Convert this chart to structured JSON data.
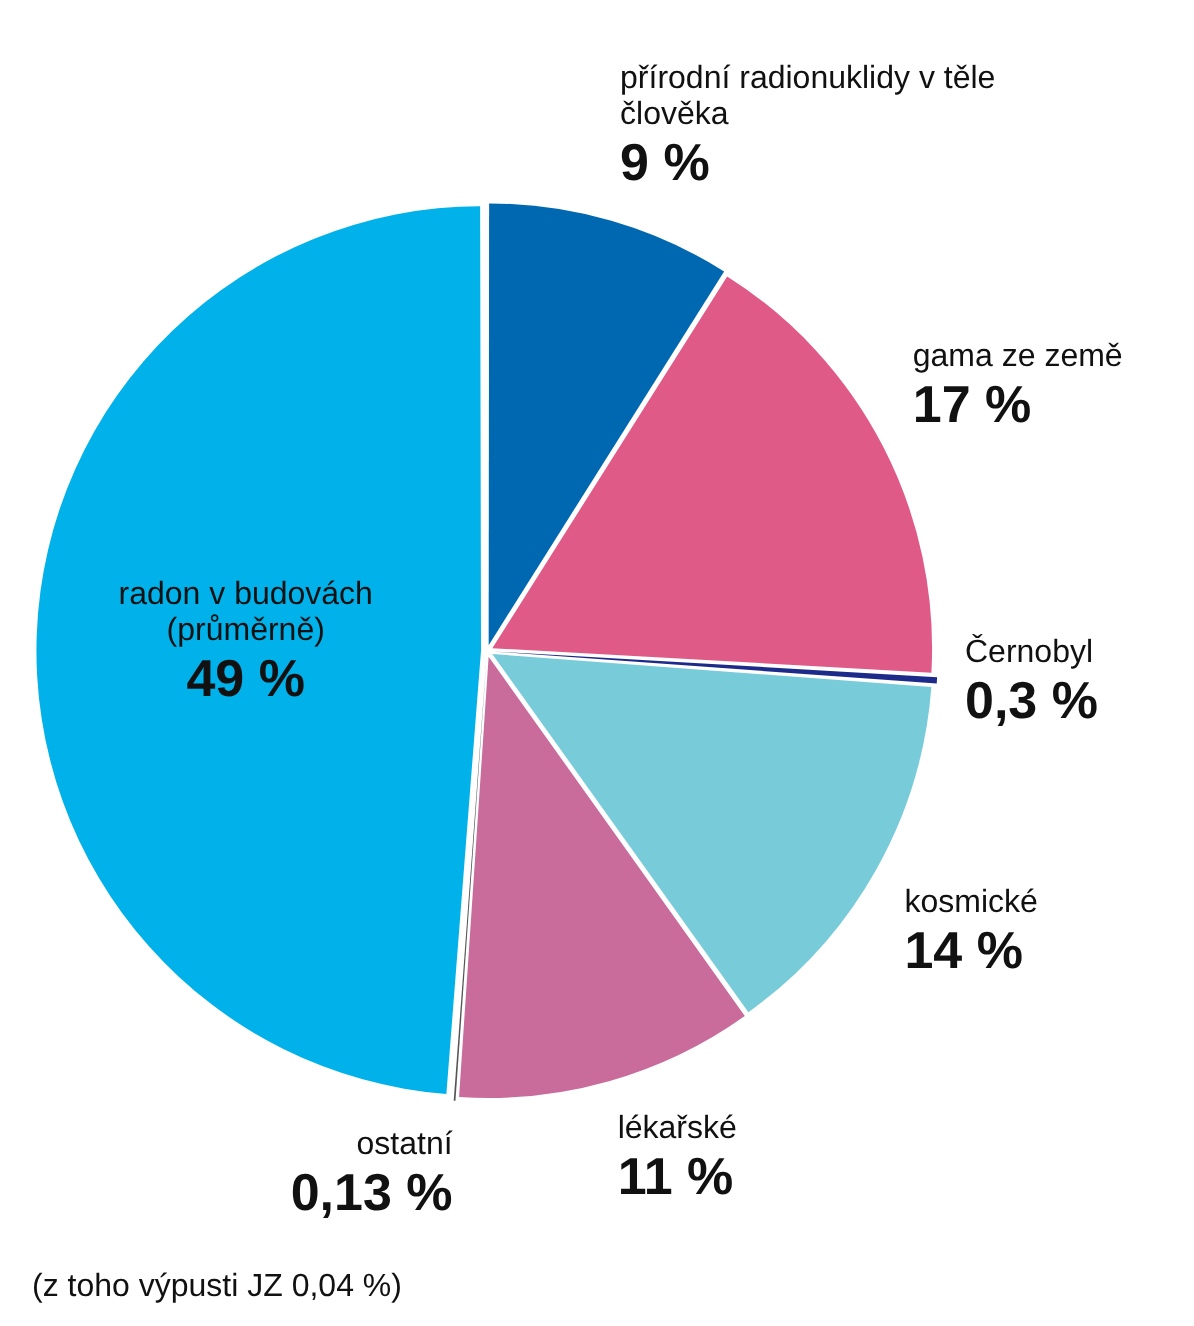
{
  "chart_data": {
    "type": "pie",
    "categories": [
      "přírodní radionuklidy v těle člověka",
      "gama ze země",
      "Černobyl",
      "kosmické",
      "lékařské",
      "ostatní",
      "radon v budovách (průměrně)"
    ],
    "values": [
      9,
      17,
      0.3,
      14,
      11,
      0.13,
      49
    ],
    "colors": [
      "#0067b1",
      "#e05a88",
      "#1c2a8a",
      "#78ccd9",
      "#c96b9b",
      "#555555",
      "#00b1ea"
    ],
    "value_labels": [
      "9 %",
      "17 %",
      "0,3 %",
      "14 %",
      "11 %",
      "0,13 %",
      "49 %"
    ],
    "annotations": [
      "(z toho výpusti JZ 0,04 %)"
    ]
  }
}
